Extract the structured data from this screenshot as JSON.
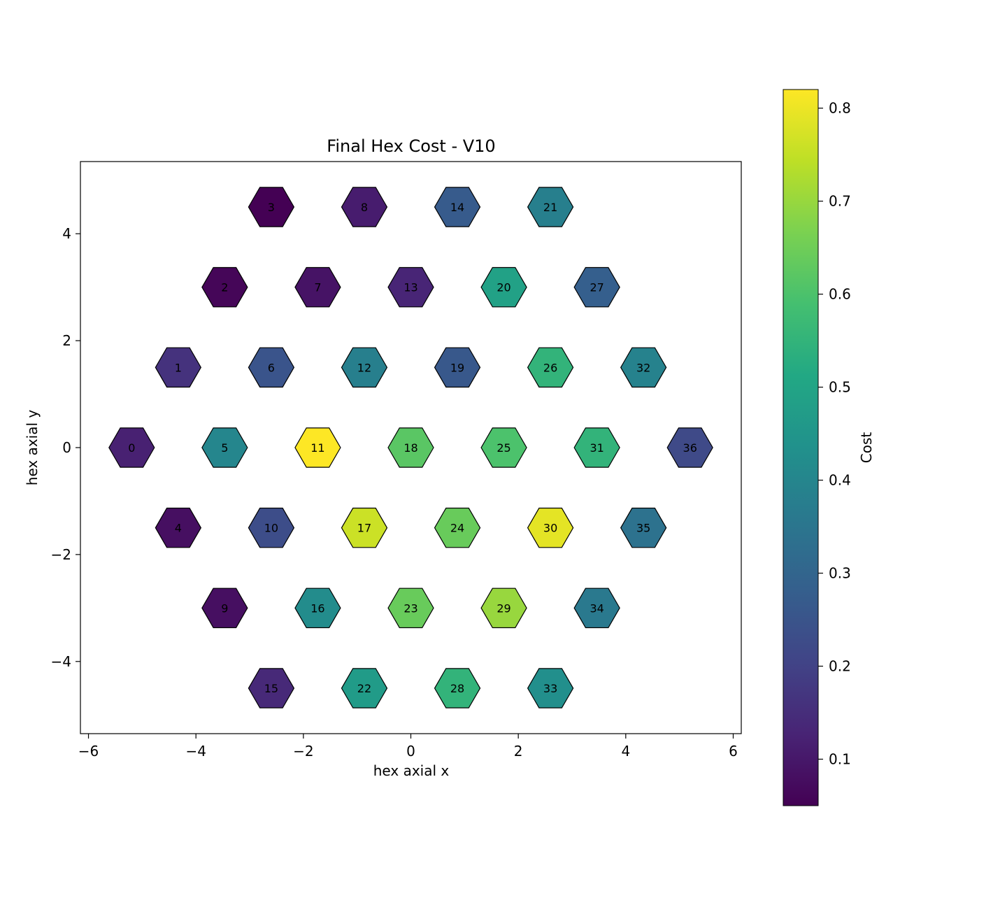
{
  "chart_data": {
    "type": "scatter",
    "marker": "hexagon",
    "title": "Final Hex Cost - V10",
    "xlabel": "hex axial x",
    "ylabel": "hex axial y",
    "xlim": [
      -6.15,
      6.15
    ],
    "ylim": [
      -5.35,
      5.35
    ],
    "xticks": [
      -6,
      -4,
      -2,
      0,
      2,
      4,
      6
    ],
    "yticks": [
      -4,
      -2,
      0,
      2,
      4
    ],
    "xtick_labels": [
      "−6",
      "−4",
      "−2",
      "0",
      "2",
      "4",
      "6"
    ],
    "ytick_labels": [
      "−4",
      "−2",
      "0",
      "2",
      "4"
    ],
    "colormap": "viridis",
    "colorbar": {
      "label": "Cost",
      "range": [
        0.05,
        0.82
      ],
      "ticks": [
        0.1,
        0.2,
        0.3,
        0.4,
        0.5,
        0.6,
        0.7,
        0.8
      ],
      "tick_labels": [
        "0.1",
        "0.2",
        "0.3",
        "0.4",
        "0.5",
        "0.6",
        "0.7",
        "0.8"
      ]
    },
    "cells": [
      {
        "id": "0",
        "x": -5.196,
        "y": 0,
        "cost": 0.12
      },
      {
        "id": "1",
        "x": -4.33,
        "y": 1.5,
        "cost": 0.16
      },
      {
        "id": "2",
        "x": -3.464,
        "y": 3.0,
        "cost": 0.06
      },
      {
        "id": "3",
        "x": -2.598,
        "y": 4.5,
        "cost": 0.05
      },
      {
        "id": "4",
        "x": -4.33,
        "y": -1.5,
        "cost": 0.08
      },
      {
        "id": "5",
        "x": -3.464,
        "y": 0,
        "cost": 0.4
      },
      {
        "id": "6",
        "x": -2.598,
        "y": 1.5,
        "cost": 0.25
      },
      {
        "id": "7",
        "x": -1.732,
        "y": 3.0,
        "cost": 0.09
      },
      {
        "id": "8",
        "x": -0.866,
        "y": 4.5,
        "cost": 0.11
      },
      {
        "id": "9",
        "x": -3.464,
        "y": -3.0,
        "cost": 0.08
      },
      {
        "id": "10",
        "x": -2.598,
        "y": -1.5,
        "cost": 0.23
      },
      {
        "id": "11",
        "x": -1.732,
        "y": 0,
        "cost": 0.82
      },
      {
        "id": "12",
        "x": -0.866,
        "y": 1.5,
        "cost": 0.38
      },
      {
        "id": "13",
        "x": 0,
        "y": 3.0,
        "cost": 0.13
      },
      {
        "id": "14",
        "x": 0.866,
        "y": 4.5,
        "cost": 0.27
      },
      {
        "id": "15",
        "x": -2.598,
        "y": -4.5,
        "cost": 0.14
      },
      {
        "id": "16",
        "x": -1.732,
        "y": -3.0,
        "cost": 0.42
      },
      {
        "id": "17",
        "x": -0.866,
        "y": -1.5,
        "cost": 0.76
      },
      {
        "id": "18",
        "x": 0,
        "y": 0,
        "cost": 0.62
      },
      {
        "id": "19",
        "x": 0.866,
        "y": 1.5,
        "cost": 0.26
      },
      {
        "id": "20",
        "x": 1.732,
        "y": 3.0,
        "cost": 0.49
      },
      {
        "id": "21",
        "x": 2.598,
        "y": 4.5,
        "cost": 0.38
      },
      {
        "id": "22",
        "x": -0.866,
        "y": -4.5,
        "cost": 0.47
      },
      {
        "id": "23",
        "x": 0,
        "y": -3.0,
        "cost": 0.64
      },
      {
        "id": "24",
        "x": 0.866,
        "y": -1.5,
        "cost": 0.64
      },
      {
        "id": "25",
        "x": 1.732,
        "y": 0,
        "cost": 0.6
      },
      {
        "id": "26",
        "x": 2.598,
        "y": 1.5,
        "cost": 0.55
      },
      {
        "id": "27",
        "x": 3.464,
        "y": 3.0,
        "cost": 0.28
      },
      {
        "id": "28",
        "x": 0.866,
        "y": -4.5,
        "cost": 0.55
      },
      {
        "id": "29",
        "x": 1.732,
        "y": -3.0,
        "cost": 0.7
      },
      {
        "id": "30",
        "x": 2.598,
        "y": -1.5,
        "cost": 0.79
      },
      {
        "id": "31",
        "x": 3.464,
        "y": 0,
        "cost": 0.55
      },
      {
        "id": "32",
        "x": 4.33,
        "y": 1.5,
        "cost": 0.39
      },
      {
        "id": "33",
        "x": 2.598,
        "y": -4.5,
        "cost": 0.43
      },
      {
        "id": "34",
        "x": 3.464,
        "y": -3.0,
        "cost": 0.36
      },
      {
        "id": "35",
        "x": 4.33,
        "y": -1.5,
        "cost": 0.34
      },
      {
        "id": "36",
        "x": 5.196,
        "y": 0,
        "cost": 0.22
      }
    ]
  }
}
